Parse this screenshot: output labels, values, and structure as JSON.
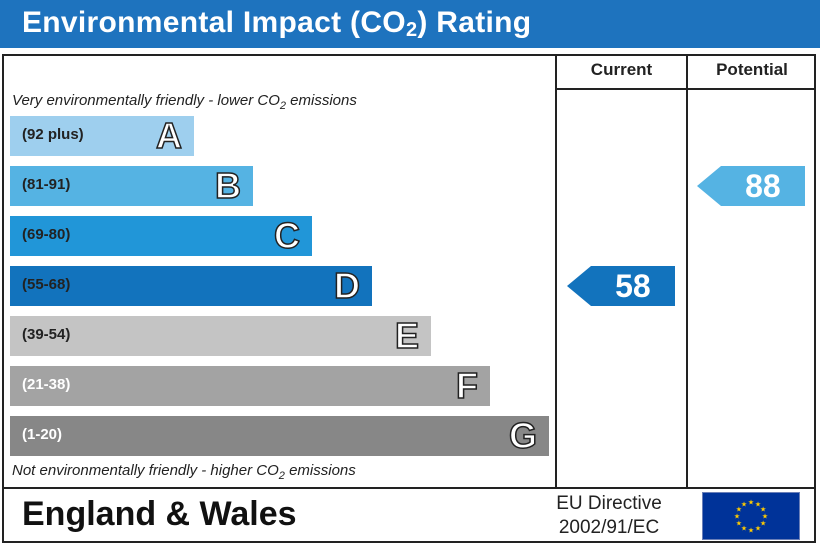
{
  "title": {
    "text": "Environmental Impact (CO",
    "subscript": "2",
    "suffix": ") Rating"
  },
  "columns": {
    "current": "Current",
    "potential": "Potential"
  },
  "notes": {
    "top_text": "Very environmentally friendly - lower CO",
    "top_sub": "2",
    "top_suffix": " emissions",
    "bottom_text": "Not environmentally friendly - higher CO",
    "bottom_sub": "2",
    "bottom_suffix": " emissions"
  },
  "bands": [
    {
      "range": "(92 plus)",
      "letter": "A",
      "color": "#9ecfee",
      "text_color": "#222222"
    },
    {
      "range": "(81-91)",
      "letter": "B",
      "color": "#55b3e3",
      "text_color": "#222222"
    },
    {
      "range": "(69-80)",
      "letter": "C",
      "color": "#2196d8",
      "text_color": "#222222"
    },
    {
      "range": "(55-68)",
      "letter": "D",
      "color": "#1273bd",
      "text_color": "#222222"
    },
    {
      "range": "(39-54)",
      "letter": "E",
      "color": "#c4c4c4",
      "text_color": "#222222"
    },
    {
      "range": "(21-38)",
      "letter": "F",
      "color": "#a3a3a3",
      "text_color": "#ffffff"
    },
    {
      "range": "(1-20)",
      "letter": "G",
      "color": "#878787",
      "text_color": "#ffffff"
    }
  ],
  "ratings": {
    "current": {
      "value": "58",
      "band": "D",
      "color": "#1273bd"
    },
    "potential": {
      "value": "88",
      "band": "B",
      "color": "#55b3e3"
    }
  },
  "footer": {
    "region": "England & Wales",
    "directive_line1": "EU Directive",
    "directive_line2": "2002/91/EC",
    "flag_icon": "eu-flag-icon"
  }
}
